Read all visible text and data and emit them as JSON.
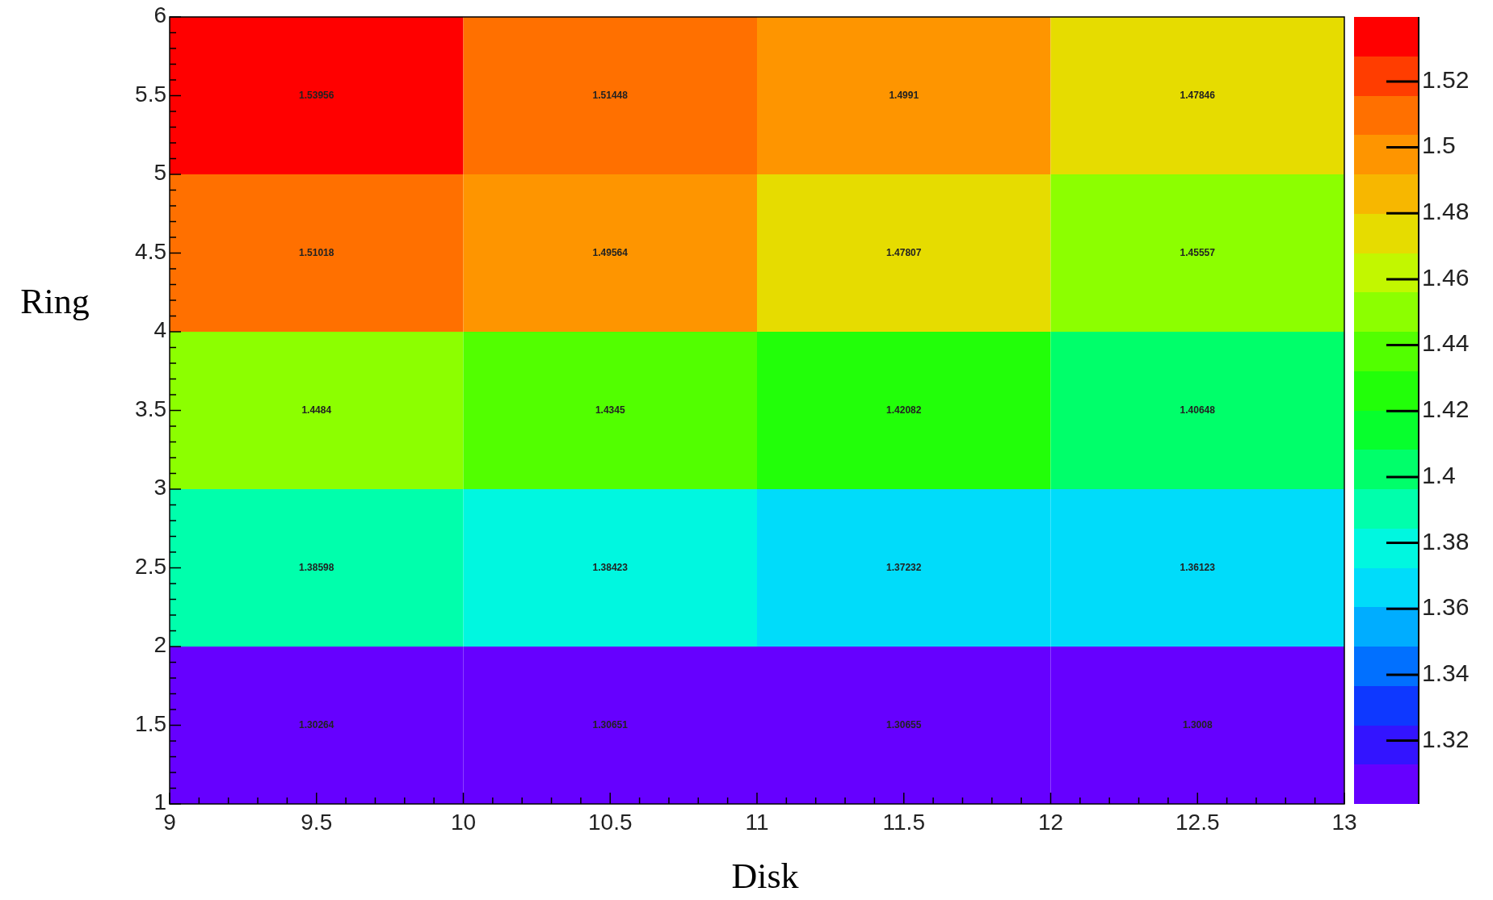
{
  "chart_data": {
    "type": "heatmap",
    "xlabel": "Disk",
    "ylabel": "Ring",
    "xlim": [
      9,
      13
    ],
    "xticks": [
      9,
      9.5,
      10,
      10.5,
      11,
      11.5,
      12,
      12.5,
      13
    ],
    "ylim": [
      1,
      6
    ],
    "yticks": [
      1,
      1.5,
      2,
      2.5,
      3,
      3.5,
      4,
      4.5,
      5,
      5.5,
      6
    ],
    "cells": [
      [
        1.53956,
        1.51448,
        1.4991,
        1.47846
      ],
      [
        1.51018,
        1.49564,
        1.47807,
        1.45557
      ],
      [
        1.4484,
        1.4345,
        1.42082,
        1.40648
      ],
      [
        1.38598,
        1.38423,
        1.37232,
        1.36123
      ],
      [
        1.30264,
        1.30651,
        1.30655,
        1.3008
      ]
    ],
    "clim": [
      1.3008,
      1.53956
    ],
    "cticks": [
      1.32,
      1.34,
      1.36,
      1.38,
      1.4,
      1.42,
      1.44,
      1.46,
      1.48,
      1.5,
      1.52
    ],
    "data_labels": true
  }
}
